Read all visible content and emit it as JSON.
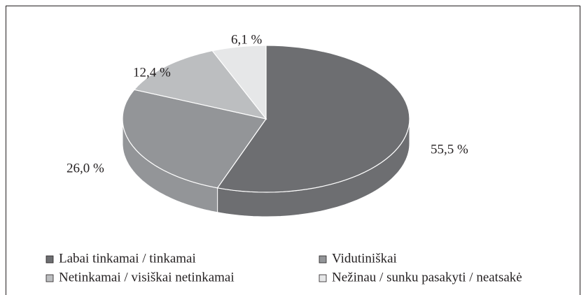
{
  "chart_data": {
    "type": "pie3d",
    "categories": [
      "Labai tinkamai / tinkamai",
      "Vidutiniškai",
      "Netinkamai / visiškai netinkamai",
      "Nežinau / sunku pasakyti / neatsakė"
    ],
    "values": [
      55.5,
      26.0,
      12.4,
      6.1
    ],
    "value_labels": [
      "55,5 %",
      "26,0 %",
      "12,4 %",
      "6,1 %"
    ],
    "colors": [
      "#6d6e71",
      "#939598",
      "#bcbec0",
      "#e6e7e8"
    ],
    "legend": "bottom"
  }
}
